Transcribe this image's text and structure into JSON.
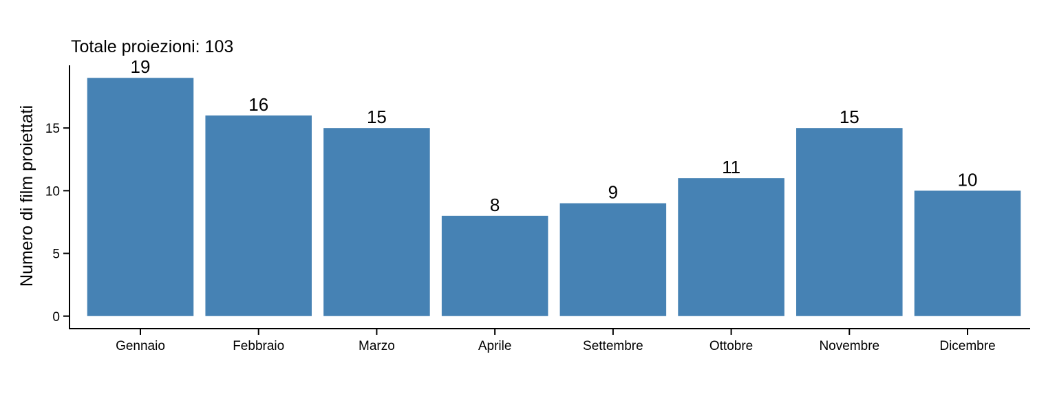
{
  "chart_data": {
    "type": "bar",
    "title": "Totale proiezioni: 103",
    "xlabel": "",
    "ylabel": "Numero di film proiettati",
    "categories": [
      "Gennaio",
      "Febbraio",
      "Marzo",
      "Aprile",
      "Settembre",
      "Ottobre",
      "Novembre",
      "Dicembre"
    ],
    "values": [
      19,
      16,
      15,
      8,
      9,
      11,
      15,
      10
    ],
    "data_labels": [
      "19",
      "16",
      "15",
      "8",
      "9",
      "11",
      "15",
      "10"
    ],
    "yticks": [
      0,
      5,
      10,
      15
    ],
    "ytick_labels": [
      "0",
      "5",
      "10",
      "15"
    ],
    "ylim": [
      -1,
      20
    ],
    "grid": false,
    "legend": "none",
    "bar_color": "#4682B4"
  }
}
